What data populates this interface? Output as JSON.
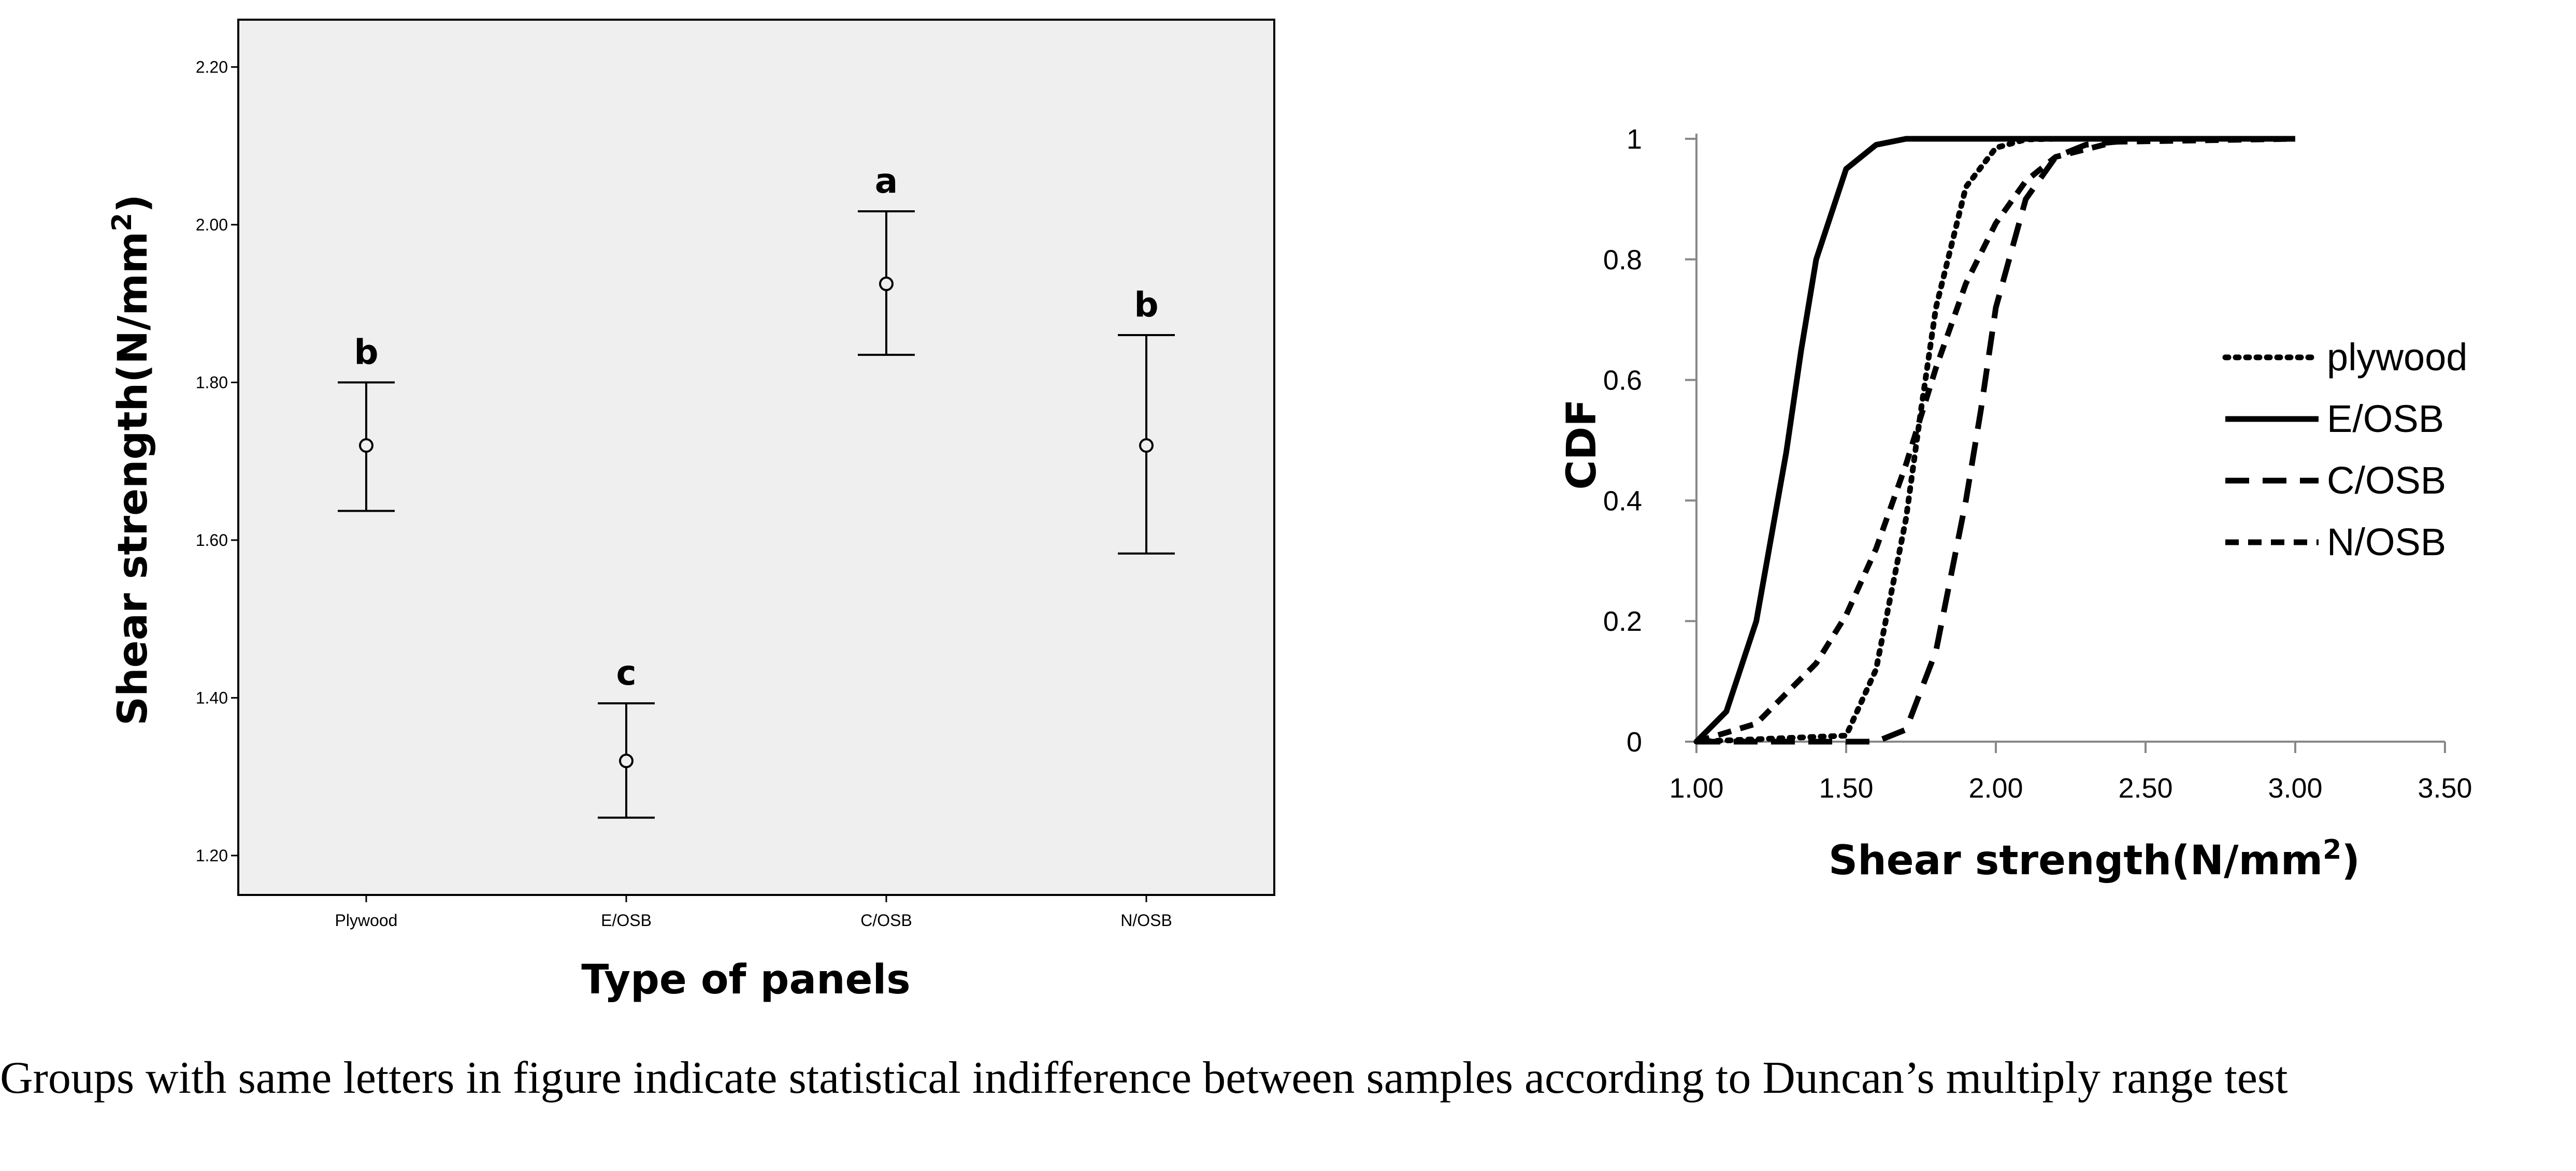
{
  "caption": "Groups with same letters in figure indicate statistical indifference between samples according to Duncan’s multiply range test",
  "chart_data": [
    {
      "type": "errorbar",
      "xlabel": "Type of panels",
      "ylabel": "Shear strength(N/mm²)",
      "ylim": [
        1.15,
        2.26
      ],
      "y_ticks": [
        "1.20",
        "1.40",
        "1.60",
        "1.80",
        "2.00",
        "2.20"
      ],
      "categories": [
        "Plywood",
        "E/OSB",
        "C/OSB",
        "N/OSB"
      ],
      "means": [
        1.72,
        1.32,
        1.925,
        1.72
      ],
      "lower": [
        1.637,
        1.248,
        1.835,
        1.583
      ],
      "upper": [
        1.8,
        1.393,
        2.017,
        1.86
      ],
      "groups": [
        "b",
        "c",
        "a",
        "b"
      ],
      "background": "#efefef"
    },
    {
      "type": "line",
      "xlabel": "Shear strength(N/mm²)",
      "ylabel": "CDF",
      "xlim": [
        1.0,
        3.5
      ],
      "ylim": [
        0,
        1
      ],
      "x_ticks": [
        "1.00",
        "1.50",
        "2.00",
        "2.50",
        "3.00",
        "3.50"
      ],
      "y_ticks": [
        "0",
        "0.2",
        "0.4",
        "0.6",
        "0.8",
        "1"
      ],
      "legend_position": "right",
      "series": [
        {
          "name": "plywood",
          "style": "dotted",
          "x": [
            1.0,
            1.5,
            1.6,
            1.7,
            1.75,
            1.8,
            1.9,
            2.0,
            2.1,
            2.2,
            3.0
          ],
          "y": [
            0,
            0.01,
            0.12,
            0.37,
            0.55,
            0.72,
            0.92,
            0.985,
            0.999,
            1,
            1
          ]
        },
        {
          "name": "E/OSB",
          "style": "solid",
          "x": [
            1.0,
            1.1,
            1.2,
            1.3,
            1.35,
            1.4,
            1.5,
            1.6,
            1.7,
            1.8,
            3.0
          ],
          "y": [
            0,
            0.05,
            0.2,
            0.48,
            0.65,
            0.8,
            0.95,
            0.99,
            1,
            1,
            1
          ]
        },
        {
          "name": "C/OSB",
          "style": "long-dash",
          "x": [
            1.0,
            1.6,
            1.7,
            1.8,
            1.9,
            1.95,
            2.0,
            2.1,
            2.2,
            2.3,
            2.5,
            3.0
          ],
          "y": [
            0,
            0,
            0.02,
            0.15,
            0.4,
            0.55,
            0.72,
            0.9,
            0.97,
            0.99,
            1,
            1
          ]
        },
        {
          "name": "N/OSB",
          "style": "short-dash",
          "x": [
            1.0,
            1.2,
            1.4,
            1.5,
            1.6,
            1.7,
            1.8,
            1.9,
            2.0,
            2.1,
            2.2,
            2.4,
            3.0
          ],
          "y": [
            0,
            0.03,
            0.13,
            0.21,
            0.32,
            0.46,
            0.62,
            0.76,
            0.86,
            0.93,
            0.97,
            0.995,
            1
          ]
        }
      ]
    }
  ]
}
